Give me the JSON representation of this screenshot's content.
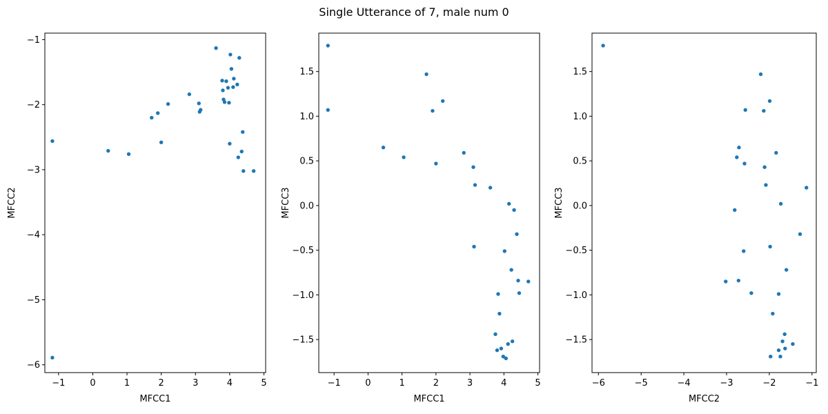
{
  "figure": {
    "title": "Single Utterance of 7, male num 0",
    "marker_color": "#1f77b4"
  },
  "chart_data": [
    {
      "type": "scatter",
      "title": "",
      "xlabel": "MFCC1",
      "ylabel": "MFCC2",
      "xlim": [
        -1.4,
        5.05
      ],
      "ylim": [
        -6.12,
        -0.9
      ],
      "xticks": [
        -1,
        0,
        1,
        2,
        3,
        4,
        5
      ],
      "yticks": [
        -6,
        -5,
        -4,
        -3,
        -2,
        -1
      ],
      "grid": false,
      "x": [
        -1.18,
        -1.18,
        0.45,
        1.05,
        1.72,
        1.9,
        2.0,
        2.2,
        2.82,
        3.1,
        3.12,
        3.15,
        3.6,
        3.78,
        3.8,
        3.82,
        3.85,
        3.9,
        3.95,
        3.98,
        4.0,
        4.02,
        4.05,
        4.1,
        4.12,
        4.22,
        4.25,
        4.28,
        4.35,
        4.38,
        4.4,
        4.7
      ],
      "y": [
        -2.56,
        -5.89,
        -2.71,
        -2.76,
        -2.2,
        -2.13,
        -2.58,
        -1.99,
        -1.84,
        -1.98,
        -2.11,
        -2.08,
        -1.13,
        -1.63,
        -1.78,
        -1.92,
        -1.96,
        -1.64,
        -1.74,
        -1.97,
        -2.6,
        -1.23,
        -1.45,
        -1.73,
        -1.6,
        -1.69,
        -2.81,
        -1.28,
        -2.72,
        -2.42,
        -3.02,
        -3.02
      ]
    },
    {
      "type": "scatter",
      "title": "",
      "xlabel": "MFCC1",
      "ylabel": "MFCC3",
      "xlim": [
        -1.45,
        5.05
      ],
      "ylim": [
        -1.87,
        1.93
      ],
      "xticks": [
        -1,
        0,
        1,
        2,
        3,
        4,
        5
      ],
      "yticks": [
        -1.5,
        -1.0,
        -0.5,
        0.0,
        0.5,
        1.0,
        1.5
      ],
      "grid": false,
      "x": [
        -1.18,
        -1.18,
        0.45,
        1.05,
        1.72,
        1.9,
        2.0,
        2.2,
        2.82,
        3.1,
        3.12,
        3.15,
        3.6,
        3.75,
        3.8,
        3.83,
        3.87,
        3.92,
        3.98,
        4.02,
        4.06,
        4.12,
        4.15,
        4.22,
        4.25,
        4.3,
        4.38,
        4.42,
        4.45,
        4.72
      ],
      "y": [
        1.79,
        1.07,
        0.65,
        0.54,
        1.47,
        1.06,
        0.47,
        1.17,
        0.59,
        0.43,
        -0.46,
        0.23,
        0.2,
        -1.44,
        -1.62,
        -0.99,
        -1.21,
        -1.6,
        -1.69,
        -0.51,
        -1.71,
        -1.55,
        0.02,
        -0.72,
        -1.52,
        -0.05,
        -0.32,
        -0.84,
        -0.98,
        -0.85
      ]
    },
    {
      "type": "scatter",
      "title": "",
      "xlabel": "MFCC2",
      "ylabel": "MFCC3",
      "xlim": [
        -6.15,
        -0.9
      ],
      "ylim": [
        -1.87,
        1.93
      ],
      "xticks": [
        -6,
        -5,
        -4,
        -3,
        -2,
        -1
      ],
      "yticks": [
        -1.5,
        -1.0,
        -0.5,
        0.0,
        0.5,
        1.0,
        1.5
      ],
      "grid": false,
      "x": [
        -5.89,
        -3.02,
        -2.81,
        -2.76,
        -2.72,
        -2.71,
        -2.6,
        -2.58,
        -2.56,
        -2.42,
        -2.2,
        -2.13,
        -2.11,
        -2.08,
        -1.99,
        -1.98,
        -1.97,
        -1.92,
        -1.84,
        -1.78,
        -1.78,
        -1.74,
        -1.73,
        -1.69,
        -1.64,
        -1.63,
        -1.6,
        -1.45,
        -1.28,
        -1.13
      ],
      "y": [
        1.79,
        -0.85,
        -0.05,
        0.54,
        -0.84,
        0.65,
        -0.51,
        0.47,
        1.07,
        -0.98,
        1.47,
        1.06,
        0.43,
        0.23,
        1.17,
        -0.46,
        -1.69,
        -1.21,
        0.59,
        -0.99,
        -1.62,
        -1.69,
        0.02,
        -1.52,
        -1.44,
        -1.6,
        -0.72,
        -1.55,
        -0.32,
        0.2
      ]
    }
  ]
}
